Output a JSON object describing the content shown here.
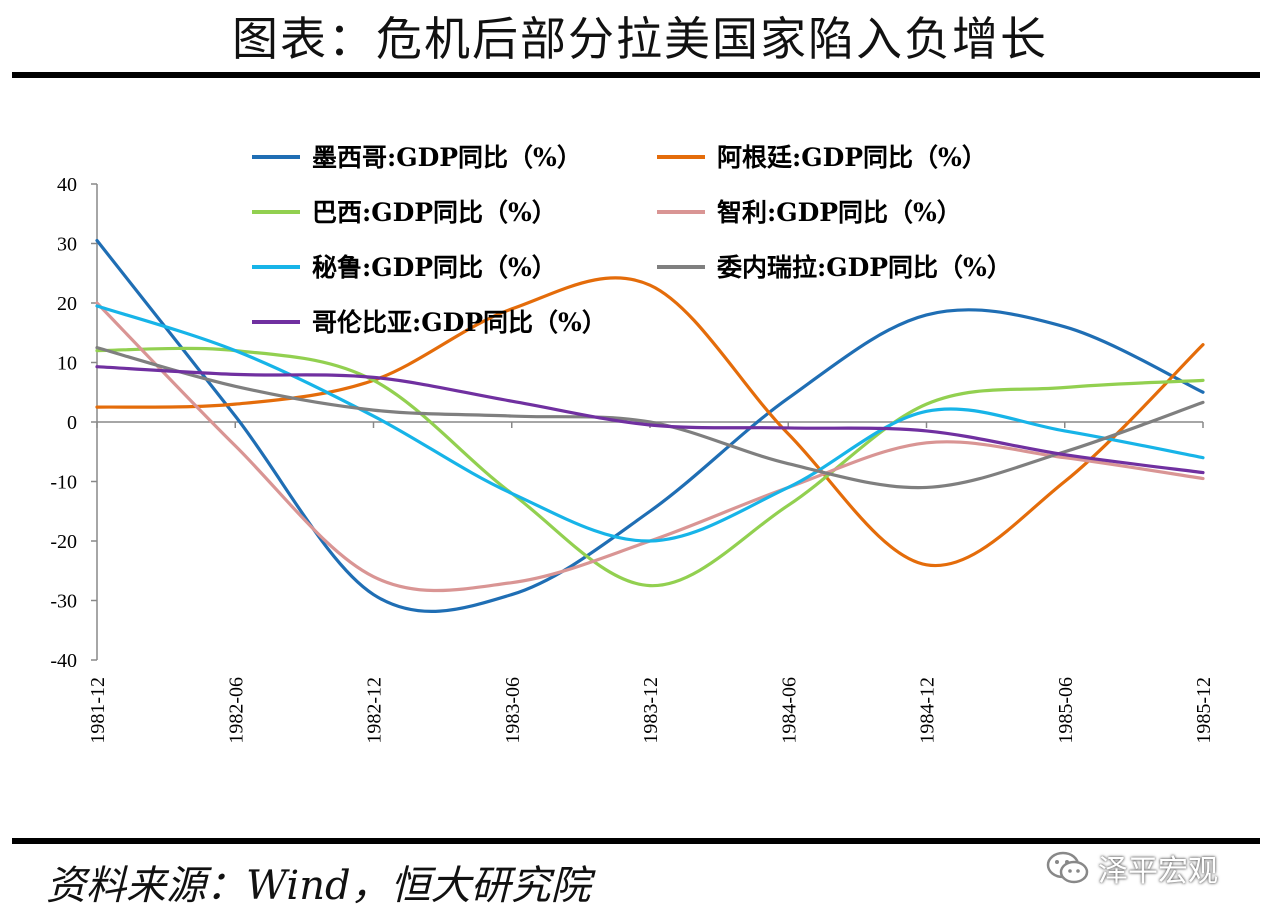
{
  "header": {
    "title": "图表：危机后部分拉美国家陷入负增长"
  },
  "footer": {
    "source": "资料来源：Wind，恒大研究院",
    "watermark": "泽平宏观"
  },
  "chart_data": {
    "type": "line",
    "title": "图表：危机后部分拉美国家陷入负增长",
    "xlabel": "",
    "ylabel": "",
    "x": [
      "1981-12",
      "1982-06",
      "1982-12",
      "1983-06",
      "1983-12",
      "1984-06",
      "1984-12",
      "1985-06",
      "1985-12"
    ],
    "ylim": [
      -40,
      40
    ],
    "yticks": [
      40,
      30,
      20,
      10,
      0,
      -10,
      -20,
      -30,
      -40
    ],
    "legend_position": "top",
    "series": [
      {
        "name": "墨西哥:GDP同比（%）",
        "color": "#1f6eb4",
        "values": [
          30.5,
          1,
          -29,
          -29,
          -15,
          4,
          18,
          16,
          5
        ]
      },
      {
        "name": "阿根廷:GDP同比（%）",
        "color": "#e46c0a",
        "values": [
          2.5,
          3,
          7,
          19,
          23,
          -2,
          -24,
          -10,
          13
        ]
      },
      {
        "name": "巴西:GDP同比（%）",
        "color": "#92d050",
        "values": [
          12,
          12,
          7,
          -12,
          -27.5,
          -14,
          3,
          5.8,
          7
        ]
      },
      {
        "name": "智利:GDP同比（%）",
        "color": "#d99594",
        "values": [
          20,
          -4,
          -26,
          -27,
          -20,
          -11,
          -3.5,
          -6,
          -9.5
        ]
      },
      {
        "name": "秘鲁:GDP同比（%）",
        "color": "#17b4e8",
        "values": [
          19.5,
          12,
          1,
          -12,
          -20,
          -11,
          1.8,
          -1.5,
          -6
        ]
      },
      {
        "name": "委内瑞拉:GDP同比（%）",
        "color": "#7f7f7f",
        "values": [
          12.5,
          6,
          2,
          1,
          0,
          -7,
          -11,
          -5,
          3.3
        ]
      },
      {
        "name": "哥伦比亚:GDP同比（%）",
        "color": "#7030a0",
        "values": [
          9.3,
          8,
          7.5,
          3.5,
          -0.5,
          -1,
          -1.5,
          -5.5,
          -8.5
        ]
      }
    ]
  }
}
